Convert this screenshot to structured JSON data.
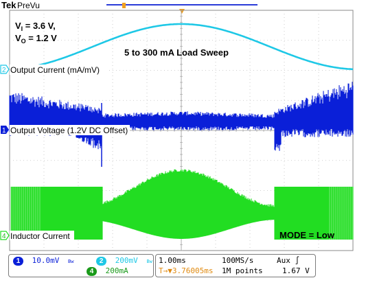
{
  "header": {
    "brand": "Tek",
    "mode": "PreVu"
  },
  "annotations": {
    "vi_label": "V",
    "vi_sub": "I",
    "vi_value": " = 3.6 V,",
    "vo_label": "V",
    "vo_sub": "O",
    "vo_value": " = 1.2 V",
    "sweep": "5 to 300 mA Load Sweep",
    "mode": "MODE = Low"
  },
  "chart_data": {
    "type": "line",
    "grid": true,
    "divisions": {
      "horizontal": 10,
      "vertical": 8
    },
    "series": [
      {
        "name": "Load Sweep",
        "channel": "2",
        "color": "#1ec8e6",
        "shape": "raised-cosine",
        "description_values": {
          "min_mA": 5,
          "max_mA": 300
        }
      },
      {
        "name": "Output Current (mA/mV)",
        "channel": "2",
        "color": "#0a1fd8"
      },
      {
        "name": "Output Voltage (1.2V DC Offset)",
        "channel": "1",
        "color": "#0a1fd8"
      },
      {
        "name": "Inductor Current",
        "channel": "4",
        "color": "#22dd22"
      }
    ],
    "trace_labels": {
      "ch2": "Output Current (mA/mV)",
      "ch1": "Output Voltage (1.2V DC Offset)",
      "ch4": "Inductor Current"
    },
    "channel_markers": {
      "ch2": "2",
      "ch1": "1",
      "ch4": "4"
    }
  },
  "status": {
    "ch1_num": "1",
    "ch1_scale": "10.0mV",
    "ch1_bw": "Bw",
    "ch2_num": "2",
    "ch2_scale": "200mV",
    "ch2_bw": "Bw",
    "ch4_num": "4",
    "ch4_scale": "200mA",
    "timebase": "1.00ms",
    "sample_rate": "100MS/s",
    "trigger_source": "Aux",
    "trigger_slope": "∫",
    "trigger_pos": "T→▼3.76005ms",
    "record_length": "1M points",
    "trigger_level": "1.67 V"
  },
  "colors": {
    "ch1": "#0a1fd8",
    "ch2": "#1ec8e6",
    "ch4": "#22dd22",
    "marker_orange": "#f0a020",
    "grid": "#bfbfbf"
  }
}
